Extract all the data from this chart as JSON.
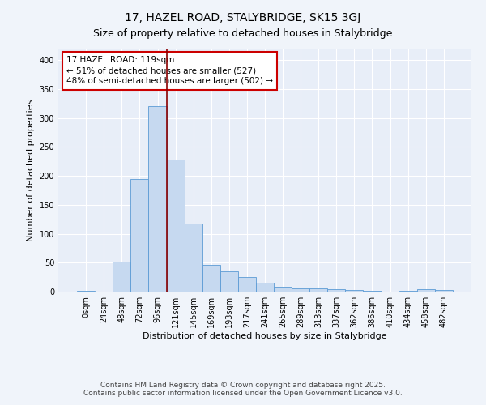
{
  "title1": "17, HAZEL ROAD, STALYBRIDGE, SK15 3GJ",
  "title2": "Size of property relative to detached houses in Stalybridge",
  "xlabel": "Distribution of detached houses by size in Stalybridge",
  "ylabel": "Number of detached properties",
  "bin_labels": [
    "0sqm",
    "24sqm",
    "48sqm",
    "72sqm",
    "96sqm",
    "121sqm",
    "145sqm",
    "169sqm",
    "193sqm",
    "217sqm",
    "241sqm",
    "265sqm",
    "289sqm",
    "313sqm",
    "337sqm",
    "362sqm",
    "386sqm",
    "410sqm",
    "434sqm",
    "458sqm",
    "482sqm"
  ],
  "bar_values": [
    2,
    0,
    52,
    195,
    320,
    228,
    117,
    46,
    35,
    25,
    16,
    9,
    5,
    5,
    4,
    3,
    1,
    0,
    1,
    4,
    3
  ],
  "bar_width": 1.0,
  "bar_color": "#c6d9f0",
  "bar_edgecolor": "#5b9bd5",
  "vline_x": 4.5,
  "vline_color": "#8b0000",
  "annotation_text": "17 HAZEL ROAD: 119sqm\n← 51% of detached houses are smaller (527)\n48% of semi-detached houses are larger (502) →",
  "annotation_box_color": "#ffffff",
  "annotation_box_edgecolor": "#cc0000",
  "footnote1": "Contains HM Land Registry data © Crown copyright and database right 2025.",
  "footnote2": "Contains public sector information licensed under the Open Government Licence v3.0.",
  "ylim": [
    0,
    420
  ],
  "yticks": [
    0,
    50,
    100,
    150,
    200,
    250,
    300,
    350,
    400
  ],
  "background_color": "#f0f4fa",
  "plot_bg_color": "#e8eef8",
  "grid_color": "#ffffff",
  "title_fontsize": 10,
  "subtitle_fontsize": 9,
  "axis_label_fontsize": 8,
  "tick_fontsize": 7,
  "annotation_fontsize": 7.5,
  "footnote_fontsize": 6.5
}
